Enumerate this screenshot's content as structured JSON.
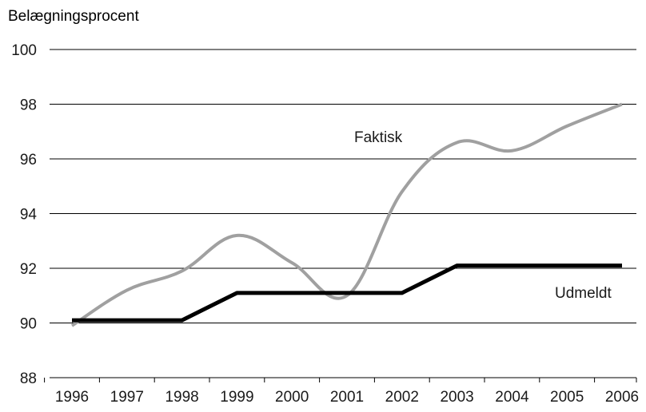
{
  "chart_data": {
    "type": "line",
    "title": "",
    "xlabel": "",
    "ylabel": "Belægningsprocent",
    "ylim": [
      88,
      100
    ],
    "yticks": [
      88,
      90,
      92,
      94,
      96,
      98,
      100
    ],
    "categories": [
      "1996",
      "1997",
      "1998",
      "1999",
      "2000",
      "2001",
      "2002",
      "2003",
      "2004",
      "2005",
      "2006"
    ],
    "grid": true,
    "series": [
      {
        "name": "Faktisk",
        "color": "#a0a0a0",
        "smooth": true,
        "values": [
          89.9,
          91.2,
          91.9,
          93.2,
          92.2,
          91.0,
          94.8,
          96.6,
          96.3,
          97.2,
          98.0
        ]
      },
      {
        "name": "Udmeldt",
        "color": "#000000",
        "smooth": false,
        "values": [
          90.1,
          90.1,
          90.1,
          91.1,
          91.1,
          91.1,
          91.1,
          92.1,
          92.1,
          92.1,
          92.1
        ]
      }
    ]
  }
}
